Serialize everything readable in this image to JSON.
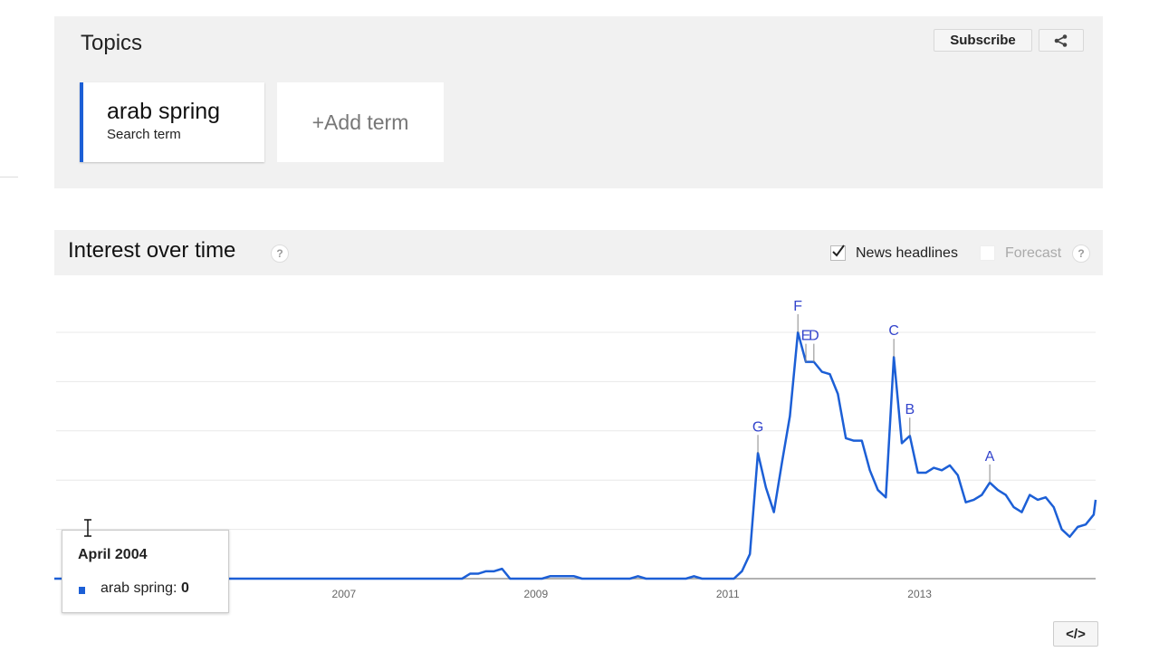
{
  "topics": {
    "title": "Topics",
    "subscribe_label": "Subscribe",
    "share_icon": "share-icon",
    "terms": [
      {
        "name": "arab spring",
        "type": "Search term",
        "color": "#1c5fd6"
      }
    ],
    "add_term_label": "+Add term"
  },
  "interest": {
    "title": "Interest over time",
    "help": "?",
    "news_headlines_label": "News headlines",
    "news_headlines_checked": true,
    "forecast_label": "Forecast",
    "forecast_checked": false
  },
  "tooltip": {
    "date": "April 2004",
    "series": "arab spring: ",
    "value": "0"
  },
  "embed_label": "</>",
  "chart_data": {
    "type": "line",
    "title": "",
    "xlabel": "",
    "ylabel": "",
    "x_ticks": [
      "2007",
      "2009",
      "2011",
      "2013"
    ],
    "xlim": [
      "2004-01",
      "2014-12"
    ],
    "ylim": [
      0,
      100
    ],
    "grid": true,
    "line_color": "#1c5fd6",
    "series": [
      {
        "name": "arab spring",
        "points": [
          [
            "2004-01",
            0
          ],
          [
            "2008-04",
            0
          ],
          [
            "2008-05",
            2
          ],
          [
            "2008-06",
            2
          ],
          [
            "2008-07",
            3
          ],
          [
            "2008-08",
            3
          ],
          [
            "2008-09",
            4
          ],
          [
            "2008-10",
            0
          ],
          [
            "2009-02",
            0
          ],
          [
            "2009-03",
            1
          ],
          [
            "2009-06",
            1
          ],
          [
            "2009-07",
            0
          ],
          [
            "2010-01",
            0
          ],
          [
            "2010-02",
            1
          ],
          [
            "2010-03",
            0
          ],
          [
            "2010-08",
            0
          ],
          [
            "2010-09",
            1
          ],
          [
            "2010-10",
            0
          ],
          [
            "2011-02",
            0
          ],
          [
            "2011-03",
            3
          ],
          [
            "2011-04",
            10
          ],
          [
            "2011-05",
            51
          ],
          [
            "2011-06",
            37
          ],
          [
            "2011-07",
            27
          ],
          [
            "2011-08",
            47
          ],
          [
            "2011-09",
            66
          ],
          [
            "2011-10",
            100
          ],
          [
            "2011-11",
            88
          ],
          [
            "2011-12",
            88
          ],
          [
            "2012-01",
            84
          ],
          [
            "2012-02",
            83
          ],
          [
            "2012-03",
            75
          ],
          [
            "2012-04",
            57
          ],
          [
            "2012-05",
            56
          ],
          [
            "2012-06",
            56
          ],
          [
            "2012-07",
            44
          ],
          [
            "2012-08",
            36
          ],
          [
            "2012-09",
            33
          ],
          [
            "2012-10",
            90
          ],
          [
            "2012-11",
            55
          ],
          [
            "2012-12",
            58
          ],
          [
            "2013-01",
            43
          ],
          [
            "2013-02",
            43
          ],
          [
            "2013-03",
            45
          ],
          [
            "2013-04",
            44
          ],
          [
            "2013-05",
            46
          ],
          [
            "2013-06",
            42
          ],
          [
            "2013-07",
            31
          ],
          [
            "2013-08",
            32
          ],
          [
            "2013-09",
            34
          ],
          [
            "2013-10",
            39
          ],
          [
            "2013-11",
            36
          ],
          [
            "2013-12",
            34
          ],
          [
            "2014-01",
            29
          ],
          [
            "2014-02",
            27
          ],
          [
            "2014-03",
            34
          ],
          [
            "2014-04",
            32
          ],
          [
            "2014-05",
            33
          ],
          [
            "2014-06",
            29
          ],
          [
            "2014-07",
            20
          ],
          [
            "2014-08",
            17
          ],
          [
            "2014-09",
            21
          ],
          [
            "2014-10",
            22
          ],
          [
            "2014-11",
            26
          ],
          [
            "2014-12",
            32
          ]
        ]
      }
    ],
    "annotations": [
      {
        "label": "G",
        "date": "2011-05"
      },
      {
        "label": "F",
        "date": "2011-10"
      },
      {
        "label": "E",
        "date": "2011-11"
      },
      {
        "label": "D",
        "date": "2011-12"
      },
      {
        "label": "C",
        "date": "2012-10"
      },
      {
        "label": "B",
        "date": "2012-12"
      },
      {
        "label": "A",
        "date": "2013-10"
      }
    ]
  }
}
